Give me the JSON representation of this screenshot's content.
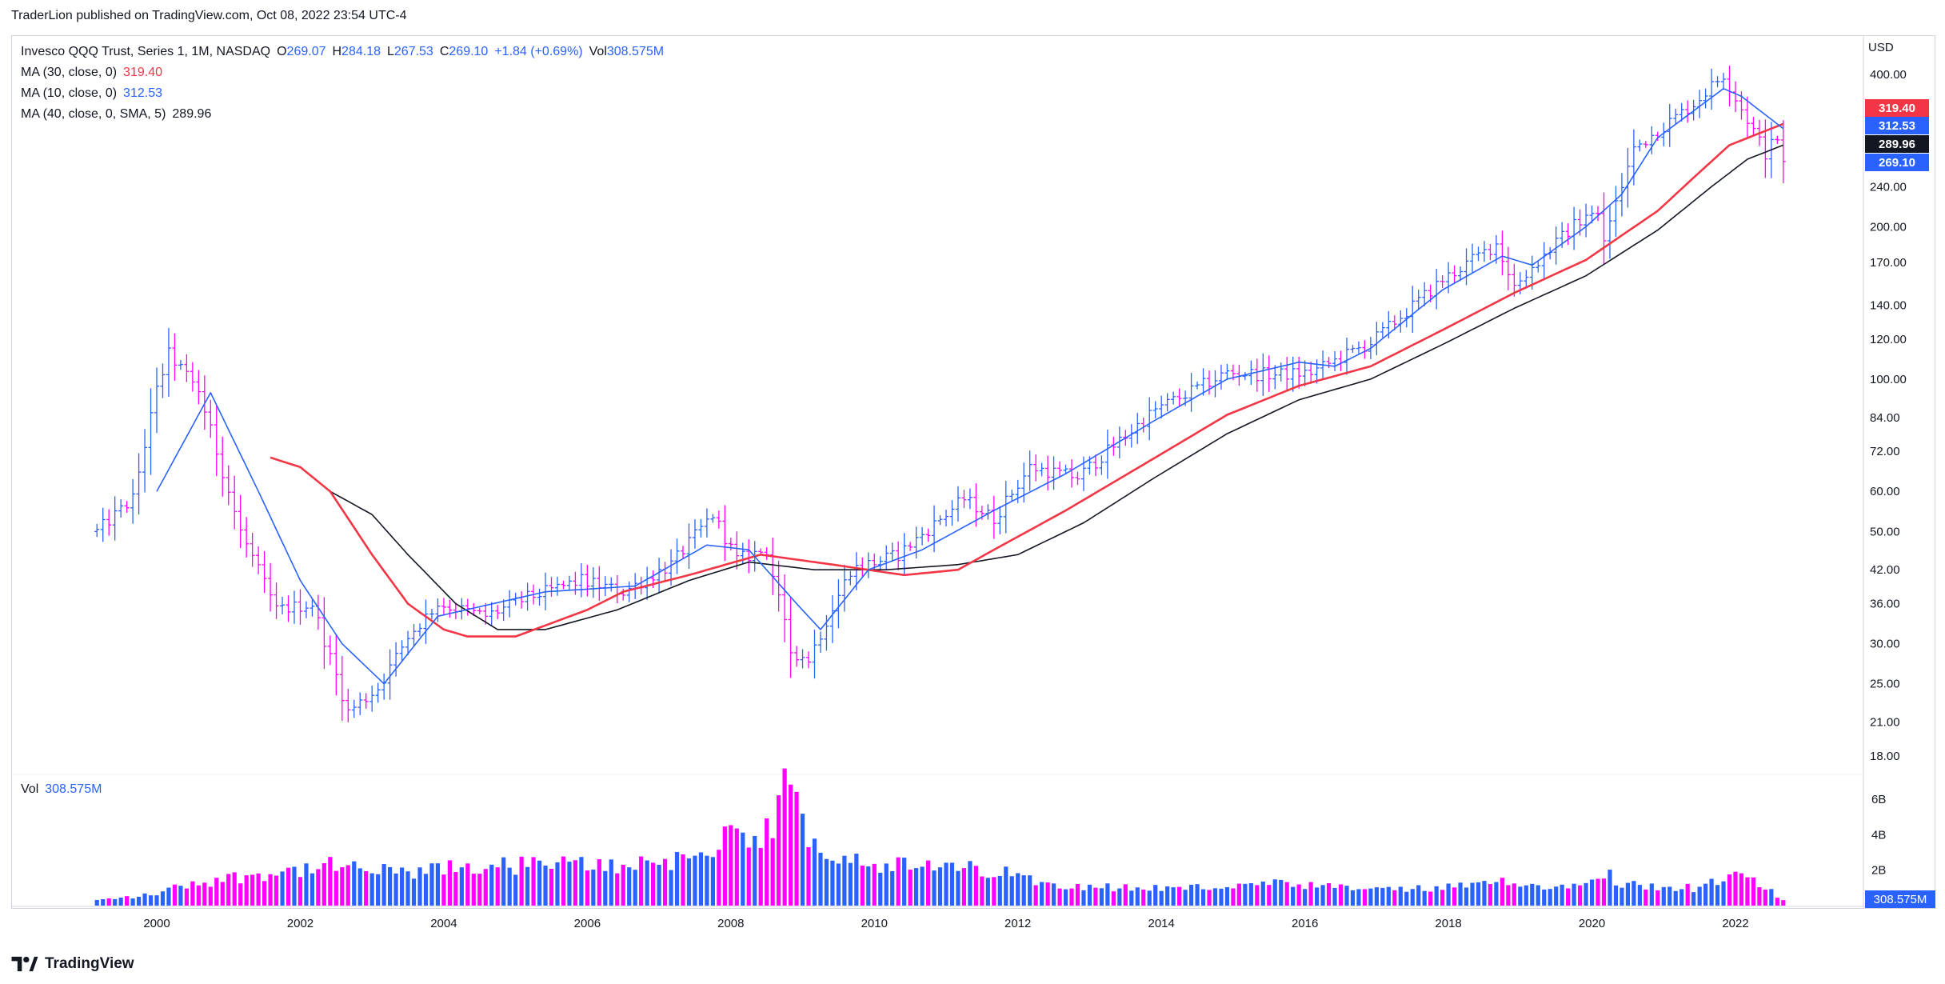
{
  "publisher": "TraderLion published on TradingView.com, Oct 08, 2022 23:54 UTC-4",
  "legend": {
    "title": "Invesco QQQ Trust, Series 1, 1M, NASDAQ",
    "open_label": "O",
    "open": "269.07",
    "high_label": "H",
    "high": "284.18",
    "low_label": "L",
    "low": "267.53",
    "close_label": "C",
    "close": "269.10",
    "change": "+1.84 (+0.69%)",
    "vol_label": "Vol",
    "vol": "308.575M",
    "ma30_label": "MA (30, close, 0)",
    "ma30_value": "319.40",
    "ma10_label": "MA (10, close, 0)",
    "ma10_value": "312.53",
    "ma40_label": "MA (40, close, 0, SMA, 5)",
    "ma40_value": "289.96"
  },
  "vol_legend": {
    "label": "Vol",
    "value": "308.575M"
  },
  "footer": {
    "brand": "TradingView"
  },
  "colors": {
    "up": "#2962ff",
    "down": "#ff00ff",
    "ma30": "#f23645",
    "ma10": "#2962ff",
    "ma40": "#131722",
    "vol_up": "#2962ff",
    "vol_down": "#ff00ff"
  },
  "chart_data": {
    "type": "bar",
    "price_scale": "log",
    "currency": "USD",
    "y_ticks": [
      18,
      21,
      25,
      30,
      36,
      42,
      50,
      60,
      72,
      84,
      100,
      120,
      140,
      170,
      200,
      240,
      400
    ],
    "x_ticks": [
      "2000",
      "2002",
      "2004",
      "2006",
      "2008",
      "2010",
      "2012",
      "2014",
      "2016",
      "2018",
      "2020",
      "2022"
    ],
    "price_labels": [
      {
        "name": "MA (30, close, 0)",
        "value": "319.40",
        "color": "#f23645"
      },
      {
        "name": "MA (10, close, 0)",
        "value": "312.53",
        "color": "#2962ff"
      },
      {
        "name": "MA (40, close, 0, SMA, 5)",
        "value": "289.96",
        "color": "#131722"
      },
      {
        "name": "Close",
        "value": "269.10",
        "color": "#2962ff"
      }
    ],
    "volume_ticks": [
      "2B",
      "4B",
      "6B"
    ],
    "volume_label": "308.575M",
    "start": "1999-03",
    "close_anchors": [
      [
        "1999-03",
        50
      ],
      [
        "1999-09",
        58
      ],
      [
        "2000-01",
        95
      ],
      [
        "2000-03",
        112
      ],
      [
        "2000-08",
        95
      ],
      [
        "2001-03",
        50
      ],
      [
        "2001-09",
        35
      ],
      [
        "2002-03",
        36
      ],
      [
        "2002-09",
        22
      ],
      [
        "2003-02",
        24.5
      ],
      [
        "2003-07",
        31
      ],
      [
        "2003-12",
        36
      ],
      [
        "2004-08",
        34
      ],
      [
        "2005-03",
        37
      ],
      [
        "2005-12",
        40
      ],
      [
        "2006-07",
        38
      ],
      [
        "2007-03",
        43
      ],
      [
        "2007-10",
        54
      ],
      [
        "2008-02",
        44
      ],
      [
        "2008-07",
        46
      ],
      [
        "2008-11",
        29
      ],
      [
        "2009-02",
        28
      ],
      [
        "2009-09",
        42
      ],
      [
        "2010-05",
        45
      ],
      [
        "2011-04",
        58
      ],
      [
        "2011-09",
        53
      ],
      [
        "2012-03",
        67
      ],
      [
        "2012-11",
        64
      ],
      [
        "2013-12",
        87
      ],
      [
        "2014-12",
        103
      ],
      [
        "2015-08",
        102
      ],
      [
        "2016-02",
        103
      ],
      [
        "2016-12",
        118
      ],
      [
        "2017-12",
        157
      ],
      [
        "2018-09",
        185
      ],
      [
        "2018-12",
        153
      ],
      [
        "2019-12",
        213
      ],
      [
        "2020-02",
        210
      ],
      [
        "2020-03",
        188
      ],
      [
        "2020-08",
        285
      ],
      [
        "2020-12",
        310
      ],
      [
        "2021-06",
        350
      ],
      [
        "2021-11",
        400
      ],
      [
        "2022-01",
        360
      ],
      [
        "2022-04",
        310
      ],
      [
        "2022-06",
        280
      ],
      [
        "2022-08",
        300
      ],
      [
        "2022-09",
        269.1
      ]
    ],
    "ma10_anchors": [
      [
        "2000-01",
        60
      ],
      [
        "2000-10",
        94
      ],
      [
        "2001-06",
        60
      ],
      [
        "2002-01",
        40
      ],
      [
        "2002-08",
        30
      ],
      [
        "2003-03",
        25
      ],
      [
        "2003-12",
        34
      ],
      [
        "2005-06",
        38
      ],
      [
        "2006-09",
        39
      ],
      [
        "2007-09",
        47
      ],
      [
        "2008-04",
        46
      ],
      [
        "2008-12",
        36
      ],
      [
        "2009-04",
        32
      ],
      [
        "2009-12",
        42
      ],
      [
        "2010-09",
        46
      ],
      [
        "2011-09",
        55
      ],
      [
        "2012-09",
        65
      ],
      [
        "2013-12",
        83
      ],
      [
        "2014-12",
        100
      ],
      [
        "2015-12",
        108
      ],
      [
        "2016-06",
        106
      ],
      [
        "2016-12",
        115
      ],
      [
        "2017-12",
        150
      ],
      [
        "2018-10",
        175
      ],
      [
        "2019-03",
        168
      ],
      [
        "2019-12",
        200
      ],
      [
        "2020-06",
        232
      ],
      [
        "2020-12",
        300
      ],
      [
        "2021-11",
        375
      ],
      [
        "2022-02",
        362
      ],
      [
        "2022-09",
        312.53
      ]
    ],
    "ma30_anchors": [
      [
        "2001-08",
        70
      ],
      [
        "2002-01",
        67
      ],
      [
        "2002-06",
        60
      ],
      [
        "2003-01",
        45
      ],
      [
        "2003-07",
        36
      ],
      [
        "2004-01",
        32
      ],
      [
        "2004-05",
        31
      ],
      [
        "2005-01",
        31
      ],
      [
        "2006-01",
        35
      ],
      [
        "2006-07",
        38
      ],
      [
        "2007-06",
        41
      ],
      [
        "2008-06",
        45
      ],
      [
        "2009-06",
        43
      ],
      [
        "2010-06",
        41
      ],
      [
        "2011-03",
        42
      ],
      [
        "2011-09",
        46
      ],
      [
        "2012-09",
        55
      ],
      [
        "2013-12",
        70
      ],
      [
        "2014-12",
        85
      ],
      [
        "2015-12",
        97
      ],
      [
        "2016-12",
        106
      ],
      [
        "2017-12",
        125
      ],
      [
        "2018-12",
        148
      ],
      [
        "2019-12",
        172
      ],
      [
        "2020-12",
        215
      ],
      [
        "2021-06",
        250
      ],
      [
        "2021-12",
        290
      ],
      [
        "2022-09",
        319.4
      ]
    ],
    "ma40_anchors": [
      [
        "2002-06",
        60
      ],
      [
        "2003-01",
        54
      ],
      [
        "2003-07",
        45
      ],
      [
        "2004-03",
        36
      ],
      [
        "2004-10",
        32
      ],
      [
        "2005-06",
        32
      ],
      [
        "2006-06",
        35
      ],
      [
        "2007-06",
        40
      ],
      [
        "2008-04",
        43.5
      ],
      [
        "2009-03",
        42
      ],
      [
        "2010-03",
        42
      ],
      [
        "2011-03",
        43
      ],
      [
        "2012-01",
        45
      ],
      [
        "2012-12",
        52
      ],
      [
        "2013-12",
        64
      ],
      [
        "2014-12",
        78
      ],
      [
        "2015-12",
        91
      ],
      [
        "2016-12",
        100
      ],
      [
        "2017-12",
        117
      ],
      [
        "2018-12",
        138
      ],
      [
        "2019-12",
        160
      ],
      [
        "2020-12",
        197
      ],
      [
        "2021-09",
        240
      ],
      [
        "2022-03",
        272
      ],
      [
        "2022-09",
        289.96
      ]
    ],
    "volume_anchors_B": [
      [
        "1999-03",
        0.3
      ],
      [
        "1999-12",
        0.6
      ],
      [
        "2000-06",
        1.2
      ],
      [
        "2001-06",
        1.8
      ],
      [
        "2002-06",
        2.2
      ],
      [
        "2003-06",
        1.8
      ],
      [
        "2004-06",
        2.2
      ],
      [
        "2005-06",
        2.3
      ],
      [
        "2006-06",
        2.3
      ],
      [
        "2007-06",
        2.7
      ],
      [
        "2007-12",
        3.6
      ],
      [
        "2008-03",
        3.8
      ],
      [
        "2008-06",
        3.0
      ],
      [
        "2008-10",
        6.8
      ],
      [
        "2009-03",
        3.5
      ],
      [
        "2009-12",
        2.5
      ],
      [
        "2010-06",
        2.2
      ],
      [
        "2011-08",
        2.0
      ],
      [
        "2012-06",
        1.3
      ],
      [
        "2013-06",
        1.0
      ],
      [
        "2014-06",
        1.0
      ],
      [
        "2015-08",
        1.2
      ],
      [
        "2016-06",
        1.0
      ],
      [
        "2017-06",
        0.9
      ],
      [
        "2018-06",
        1.1
      ],
      [
        "2018-12",
        1.5
      ],
      [
        "2019-06",
        0.9
      ],
      [
        "2020-03",
        2.0
      ],
      [
        "2020-06",
        1.2
      ],
      [
        "2021-06",
        1.0
      ],
      [
        "2022-03",
        1.7
      ],
      [
        "2022-09",
        0.31
      ]
    ]
  }
}
